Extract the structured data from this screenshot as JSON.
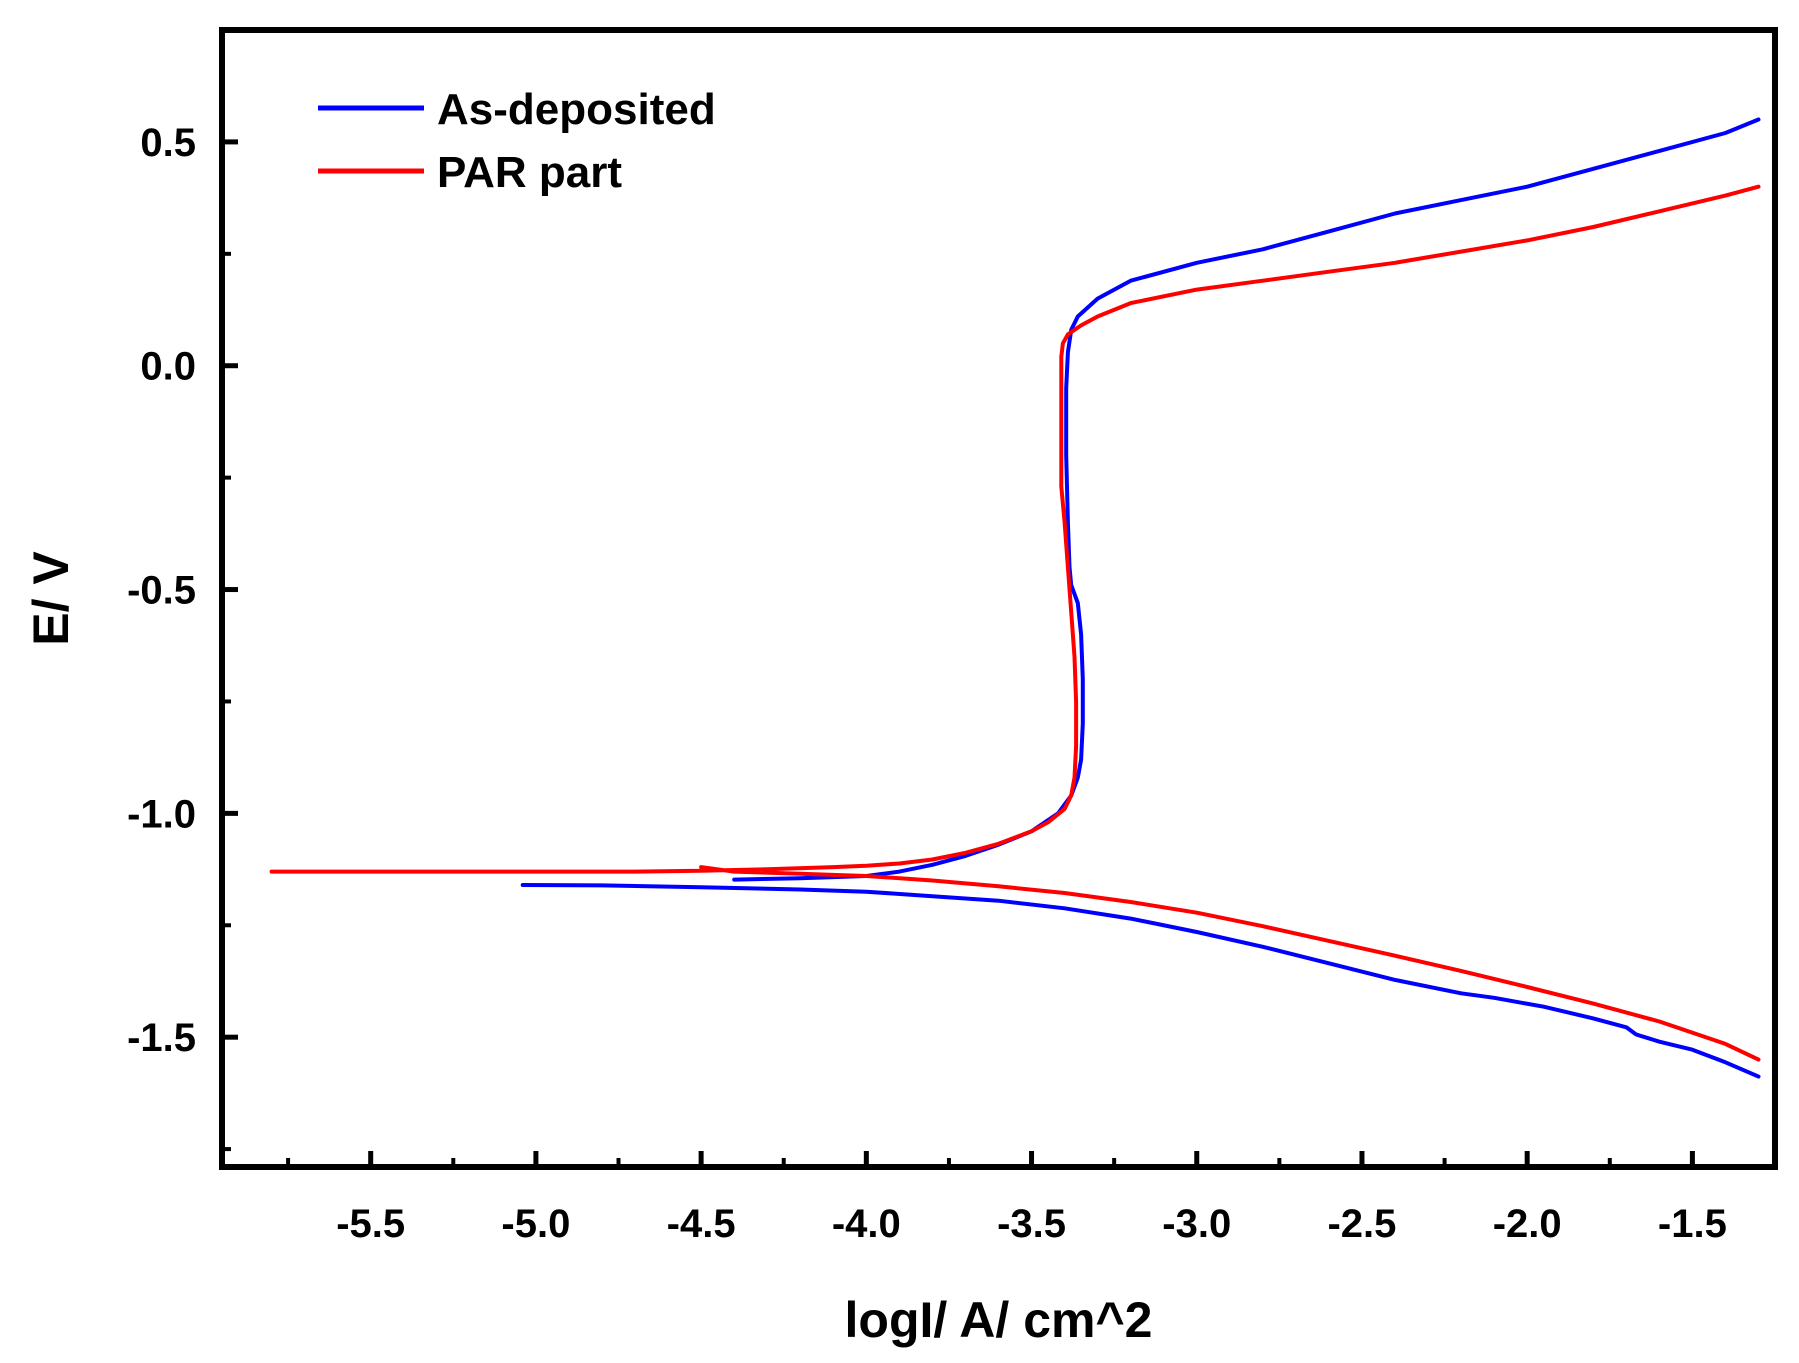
{
  "chart_data": {
    "type": "line",
    "title": "",
    "xlabel": "logI/ A/ cm^2",
    "ylabel": "E/ V",
    "xlim": [
      -5.95,
      -1.25
    ],
    "ylim": [
      -1.79,
      0.75
    ],
    "xticks": [
      -5.5,
      -5.0,
      -4.5,
      -4.0,
      -3.5,
      -3.0,
      -2.5,
      -2.0,
      -1.5
    ],
    "xtick_labels": [
      "-5.5",
      "-5.0",
      "-4.5",
      "-4.0",
      "-3.5",
      "-3.0",
      "-2.5",
      "-2.0",
      "-1.5"
    ],
    "yticks": [
      0.5,
      0.0,
      -0.5,
      -1.0,
      -1.5
    ],
    "ytick_labels": [
      "0.5",
      "0.0",
      "-0.5",
      "-1.0",
      "-1.5"
    ],
    "yminor": [
      0.25,
      -0.25,
      -0.75,
      -1.25,
      -1.75
    ],
    "xminor": [
      -5.75,
      -5.25,
      -4.75,
      -4.25,
      -3.75,
      -3.25,
      -2.75,
      -2.25,
      -1.75
    ],
    "grid": false,
    "legend_position": "top-left",
    "series": [
      {
        "name": "As-deposited",
        "color": "#0000ff",
        "points": [
          [
            -5.04,
            -1.16
          ],
          [
            -4.8,
            -1.161
          ],
          [
            -4.5,
            -1.165
          ],
          [
            -4.2,
            -1.17
          ],
          [
            -4.0,
            -1.175
          ],
          [
            -3.8,
            -1.185
          ],
          [
            -3.6,
            -1.195
          ],
          [
            -3.4,
            -1.212
          ],
          [
            -3.2,
            -1.235
          ],
          [
            -3.0,
            -1.265
          ],
          [
            -2.8,
            -1.298
          ],
          [
            -2.6,
            -1.335
          ],
          [
            -2.4,
            -1.372
          ],
          [
            -2.2,
            -1.402
          ],
          [
            -2.1,
            -1.412
          ],
          [
            -1.95,
            -1.432
          ],
          [
            -1.8,
            -1.458
          ],
          [
            -1.7,
            -1.478
          ],
          [
            -1.67,
            -1.494
          ],
          [
            -1.6,
            -1.51
          ],
          [
            -1.5,
            -1.528
          ],
          [
            -1.4,
            -1.556
          ],
          [
            -1.3,
            -1.588
          ],
          [
            null,
            null
          ],
          [
            -4.4,
            -1.148
          ],
          [
            -4.2,
            -1.145
          ],
          [
            -4.0,
            -1.14
          ],
          [
            -3.9,
            -1.13
          ],
          [
            -3.8,
            -1.115
          ],
          [
            -3.7,
            -1.095
          ],
          [
            -3.6,
            -1.07
          ],
          [
            -3.5,
            -1.04
          ],
          [
            -3.42,
            -1.0
          ],
          [
            -3.38,
            -0.96
          ],
          [
            -3.36,
            -0.92
          ],
          [
            -3.35,
            -0.88
          ],
          [
            -3.345,
            -0.8
          ],
          [
            -3.345,
            -0.7
          ],
          [
            -3.35,
            -0.6
          ],
          [
            -3.36,
            -0.53
          ],
          [
            -3.38,
            -0.49
          ],
          [
            -3.385,
            -0.45
          ],
          [
            -3.39,
            -0.35
          ],
          [
            -3.395,
            -0.2
          ],
          [
            -3.395,
            -0.05
          ],
          [
            -3.39,
            0.03
          ],
          [
            -3.38,
            0.08
          ],
          [
            -3.36,
            0.11
          ],
          [
            -3.3,
            0.15
          ],
          [
            -3.2,
            0.19
          ],
          [
            -3.0,
            0.23
          ],
          [
            -2.8,
            0.26
          ],
          [
            -2.6,
            0.3
          ],
          [
            -2.4,
            0.34
          ],
          [
            -2.2,
            0.37
          ],
          [
            -2.0,
            0.4
          ],
          [
            -1.8,
            0.44
          ],
          [
            -1.6,
            0.48
          ],
          [
            -1.4,
            0.52
          ],
          [
            -1.3,
            0.55
          ]
        ]
      },
      {
        "name": "PAR part",
        "color": "#ff0000",
        "points": [
          [
            -5.8,
            -1.13
          ],
          [
            -5.5,
            -1.13
          ],
          [
            -5.0,
            -1.13
          ],
          [
            -4.7,
            -1.13
          ],
          [
            -4.5,
            -1.128
          ],
          [
            -4.3,
            -1.125
          ],
          [
            -4.1,
            -1.12
          ],
          [
            -4.0,
            -1.117
          ],
          [
            -3.9,
            -1.112
          ],
          [
            -3.8,
            -1.103
          ],
          [
            -3.7,
            -1.088
          ],
          [
            -3.6,
            -1.068
          ],
          [
            -3.5,
            -1.04
          ],
          [
            -3.45,
            -1.02
          ],
          [
            -3.4,
            -0.99
          ],
          [
            -3.38,
            -0.96
          ],
          [
            -3.37,
            -0.92
          ],
          [
            -3.365,
            -0.85
          ],
          [
            -3.365,
            -0.75
          ],
          [
            -3.37,
            -0.65
          ],
          [
            -3.38,
            -0.55
          ],
          [
            -3.39,
            -0.45
          ],
          [
            -3.4,
            -0.35
          ],
          [
            -3.41,
            -0.27
          ],
          [
            -3.41,
            -0.15
          ],
          [
            -3.41,
            -0.05
          ],
          [
            -3.41,
            0.02
          ],
          [
            -3.405,
            0.05
          ],
          [
            -3.39,
            0.07
          ],
          [
            -3.35,
            0.09
          ],
          [
            -3.3,
            0.11
          ],
          [
            -3.2,
            0.14
          ],
          [
            -3.0,
            0.17
          ],
          [
            -2.8,
            0.19
          ],
          [
            -2.6,
            0.21
          ],
          [
            -2.4,
            0.23
          ],
          [
            -2.2,
            0.255
          ],
          [
            -2.0,
            0.28
          ],
          [
            -1.8,
            0.31
          ],
          [
            -1.6,
            0.345
          ],
          [
            -1.4,
            0.38
          ],
          [
            -1.3,
            0.4
          ],
          [
            null,
            null
          ],
          [
            -4.5,
            -1.12
          ],
          [
            -4.4,
            -1.13
          ],
          [
            -4.2,
            -1.135
          ],
          [
            -4.0,
            -1.14
          ],
          [
            -3.8,
            -1.15
          ],
          [
            -3.6,
            -1.163
          ],
          [
            -3.4,
            -1.178
          ],
          [
            -3.2,
            -1.198
          ],
          [
            -3.0,
            -1.222
          ],
          [
            -2.8,
            -1.252
          ],
          [
            -2.6,
            -1.285
          ],
          [
            -2.4,
            -1.318
          ],
          [
            -2.2,
            -1.352
          ],
          [
            -2.0,
            -1.388
          ],
          [
            -1.8,
            -1.425
          ],
          [
            -1.6,
            -1.465
          ],
          [
            -1.4,
            -1.515
          ],
          [
            -1.3,
            -1.55
          ]
        ]
      }
    ]
  }
}
